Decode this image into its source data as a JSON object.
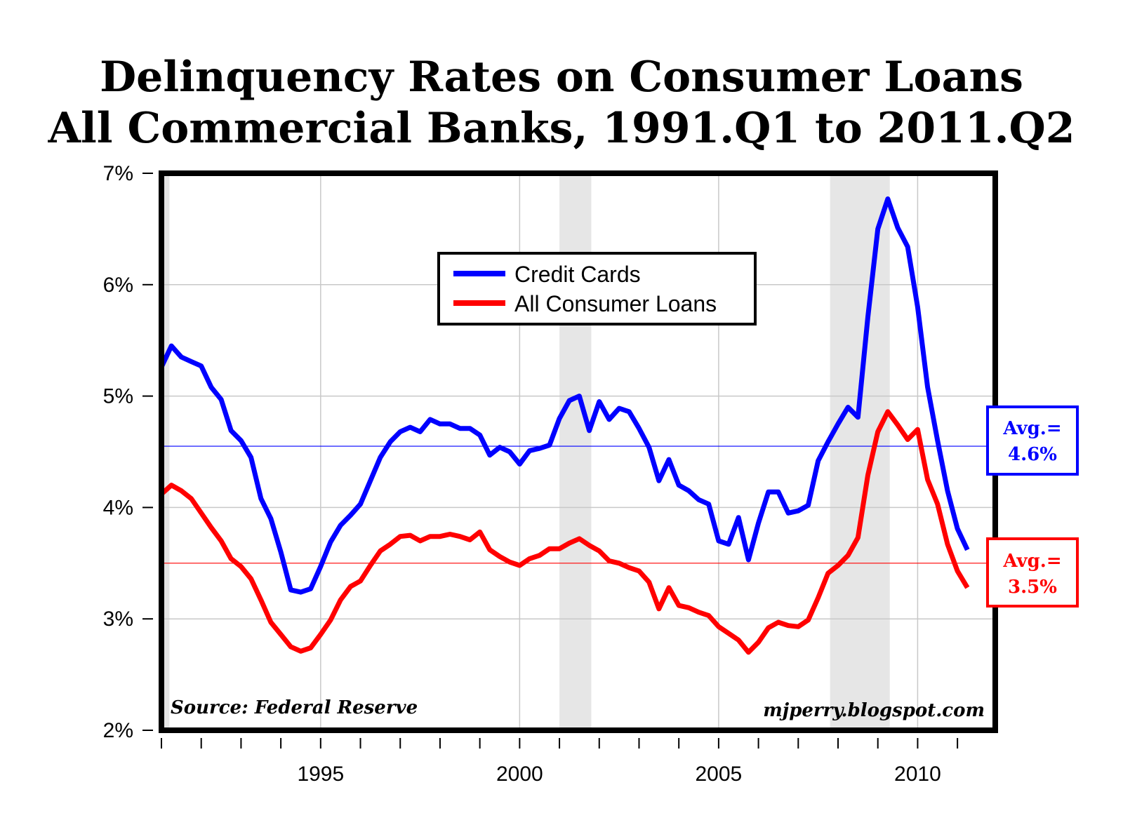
{
  "chart_data": {
    "type": "line",
    "title": "Delinquency Rates on Consumer Loans",
    "subtitle": "All Commercial Banks, 1991.Q1 to 2011.Q2",
    "xlabel": "",
    "ylabel": "",
    "xlim": [
      1991.0,
      2011.95
    ],
    "ylim": [
      2,
      7
    ],
    "y_ticks": [
      2,
      3,
      4,
      5,
      6,
      7
    ],
    "y_tick_labels": [
      "2%",
      "3%",
      "4%",
      "5%",
      "6%",
      "7%"
    ],
    "x_tick_labels": [
      "1995",
      "2000",
      "2005",
      "2010"
    ],
    "x_tick_values": [
      1995,
      2000,
      2005,
      2010
    ],
    "x_minor_ticks": [
      1991,
      1992,
      1993,
      1994,
      1995,
      1996,
      1997,
      1998,
      1999,
      2000,
      2001,
      2002,
      2003,
      2004,
      2005,
      2006,
      2007,
      2008,
      2009,
      2010,
      2011
    ],
    "grid": true,
    "recessions": [
      [
        1991.0,
        1991.2
      ],
      [
        2001.0,
        2001.8
      ],
      [
        2007.8,
        2009.3
      ]
    ],
    "legend_position": "top-center",
    "x": [
      1991.0,
      1991.25,
      1991.5,
      1991.75,
      1992.0,
      1992.25,
      1992.5,
      1992.75,
      1993.0,
      1993.25,
      1993.5,
      1993.75,
      1994.0,
      1994.25,
      1994.5,
      1994.75,
      1995.0,
      1995.25,
      1995.5,
      1995.75,
      1996.0,
      1996.25,
      1996.5,
      1996.75,
      1997.0,
      1997.25,
      1997.5,
      1997.75,
      1998.0,
      1998.25,
      1998.5,
      1998.75,
      1999.0,
      1999.25,
      1999.5,
      1999.75,
      2000.0,
      2000.25,
      2000.5,
      2000.75,
      2001.0,
      2001.25,
      2001.5,
      2001.75,
      2002.0,
      2002.25,
      2002.5,
      2002.75,
      2003.0,
      2003.25,
      2003.5,
      2003.75,
      2004.0,
      2004.25,
      2004.5,
      2004.75,
      2005.0,
      2005.25,
      2005.5,
      2005.75,
      2006.0,
      2006.25,
      2006.5,
      2006.75,
      2007.0,
      2007.25,
      2007.5,
      2007.75,
      2008.0,
      2008.25,
      2008.5,
      2008.75,
      2009.0,
      2009.25,
      2009.5,
      2009.75,
      2010.0,
      2010.25,
      2010.5,
      2010.75,
      2011.0,
      2011.25
    ],
    "series": [
      {
        "name": "Credit Cards",
        "color": "#0000ff",
        "values": [
          5.26,
          5.45,
          5.35,
          5.31,
          5.27,
          5.08,
          4.97,
          4.69,
          4.6,
          4.45,
          4.08,
          3.9,
          3.6,
          3.26,
          3.24,
          3.27,
          3.47,
          3.69,
          3.84,
          3.93,
          4.03,
          4.24,
          4.45,
          4.59,
          4.68,
          4.72,
          4.68,
          4.79,
          4.75,
          4.75,
          4.71,
          4.71,
          4.65,
          4.47,
          4.54,
          4.5,
          4.39,
          4.51,
          4.53,
          4.56,
          4.8,
          4.96,
          5.0,
          4.69,
          4.95,
          4.79,
          4.89,
          4.86,
          4.71,
          4.54,
          4.24,
          4.43,
          4.2,
          4.15,
          4.07,
          4.03,
          3.7,
          3.67,
          3.91,
          3.53,
          3.86,
          4.14,
          4.14,
          3.95,
          3.97,
          4.02,
          4.42,
          4.59,
          4.75,
          4.9,
          4.81,
          5.71,
          6.5,
          6.77,
          6.51,
          6.34,
          5.8,
          5.08,
          4.6,
          4.15,
          3.81,
          3.62
        ]
      },
      {
        "name": "All Consumer Loans",
        "color": "#ff0000",
        "values": [
          4.12,
          4.2,
          4.15,
          4.08,
          3.95,
          3.82,
          3.7,
          3.54,
          3.47,
          3.36,
          3.17,
          2.97,
          2.86,
          2.75,
          2.71,
          2.74,
          2.86,
          2.99,
          3.17,
          3.29,
          3.34,
          3.48,
          3.61,
          3.67,
          3.74,
          3.75,
          3.7,
          3.74,
          3.74,
          3.76,
          3.74,
          3.71,
          3.78,
          3.62,
          3.56,
          3.51,
          3.48,
          3.54,
          3.57,
          3.63,
          3.63,
          3.68,
          3.72,
          3.66,
          3.61,
          3.52,
          3.5,
          3.46,
          3.43,
          3.33,
          3.09,
          3.28,
          3.12,
          3.1,
          3.06,
          3.03,
          2.93,
          2.87,
          2.81,
          2.7,
          2.79,
          2.92,
          2.97,
          2.94,
          2.93,
          2.99,
          3.19,
          3.41,
          3.48,
          3.57,
          3.73,
          4.29,
          4.68,
          4.86,
          4.74,
          4.61,
          4.7,
          4.25,
          4.03,
          3.67,
          3.43,
          3.28
        ]
      }
    ],
    "averages": [
      {
        "name": "Credit Cards",
        "value": 4.55,
        "label_line1": "Avg.=",
        "label_line2": "4.6%",
        "color": "#0000ff"
      },
      {
        "name": "All Consumer Loans",
        "value": 3.5,
        "label_line1": "Avg.=",
        "label_line2": "3.5%",
        "color": "#ff0000"
      }
    ]
  },
  "source_note": "Source: Federal Reserve",
  "site_note": "mjperry.blogspot.com"
}
